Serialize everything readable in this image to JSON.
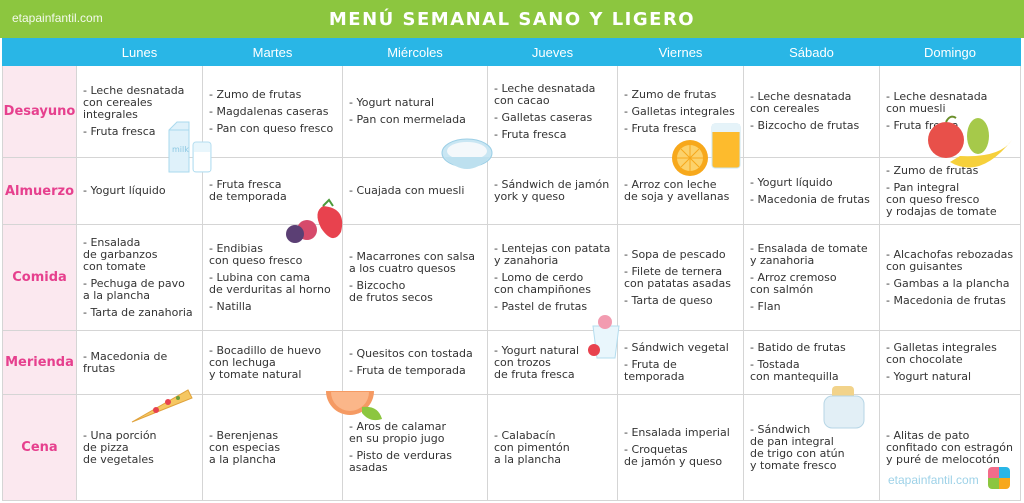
{
  "brand": "etapainfantil.com",
  "title": "MENÚ SEMANAL SANO Y LIGERO",
  "days": [
    "Lunes",
    "Martes",
    "Miércoles",
    "Jueves",
    "Viernes",
    "Sábado",
    "Domingo"
  ],
  "meals": [
    {
      "label": "Desayuno",
      "cells": [
        [
          "- Leche desnatada\n  con cereales\n  integrales",
          "- Fruta fresca"
        ],
        [
          "- Zumo de frutas",
          "- Magdalenas caseras",
          "- Pan con queso fresco"
        ],
        [
          "- Yogurt natural",
          "- Pan con mermelada"
        ],
        [
          "- Leche desnatada\n  con cacao",
          "- Galletas caseras",
          "- Fruta fresca"
        ],
        [
          "- Zumo de frutas",
          "- Galletas integrales",
          "- Fruta fresca"
        ],
        [
          "- Leche desnatada\n  con cereales",
          "- Bizcocho de frutas"
        ],
        [
          "- Leche desnatada\n  con muesli",
          "- Fruta fresca"
        ]
      ]
    },
    {
      "label": "Almuerzo",
      "cells": [
        [
          "- Yogurt líquido"
        ],
        [
          "- Fruta fresca\n  de temporada"
        ],
        [
          "- Cuajada con muesli"
        ],
        [
          "- Sándwich de jamón\n  york y queso"
        ],
        [
          "- Arroz con leche\n  de soja y avellanas"
        ],
        [
          "- Yogurt líquido",
          "- Macedonia de frutas"
        ],
        [
          "- Zumo de frutas",
          "- Pan integral\n  con queso fresco\n  y rodajas de tomate"
        ]
      ]
    },
    {
      "label": "Comida",
      "cells": [
        [
          "- Ensalada\n  de garbanzos\n  con tomate",
          "- Pechuga de pavo\n  a la plancha",
          "- Tarta de zanahoria"
        ],
        [
          "- Endibias\n  con queso fresco",
          "- Lubina con cama\n  de verduritas al horno",
          "- Natilla"
        ],
        [
          "- Macarrones con salsa\n  a los cuatro quesos",
          "- Bizcocho\n  de frutos secos"
        ],
        [
          "- Lentejas con patata\n  y zanahoria",
          "- Lomo de cerdo\n  con champiñones",
          "- Pastel de frutas"
        ],
        [
          "- Sopa de pescado",
          "- Filete de ternera\n  con patatas asadas",
          "- Tarta de queso"
        ],
        [
          "- Ensalada de tomate\n  y zanahoria",
          "- Arroz cremoso\n  con salmón",
          "- Flan"
        ],
        [
          "- Alcachofas rebozadas\n  con guisantes",
          "- Gambas a la plancha",
          "- Macedonia de frutas"
        ]
      ]
    },
    {
      "label": "Merienda",
      "cells": [
        [
          "- Macedonia de frutas"
        ],
        [
          "- Bocadillo de huevo\n  con lechuga\n  y tomate natural"
        ],
        [
          "- Quesitos con tostada",
          "- Fruta de temporada"
        ],
        [
          "- Yogurt natural\n  con trozos\n  de fruta fresca"
        ],
        [
          "- Sándwich vegetal",
          "- Fruta de temporada"
        ],
        [
          "- Batido de frutas",
          "- Tostada\n  con mantequilla"
        ],
        [
          "- Galletas integrales\n  con chocolate",
          "- Yogurt natural"
        ]
      ]
    },
    {
      "label": "Cena",
      "cells": [
        [
          "- Una porción\n  de pizza\n  de vegetales"
        ],
        [
          "- Berenjenas\n  con especias\n  a la plancha"
        ],
        [
          "- Aros de calamar\n  en su propio jugo",
          "- Pisto de verduras\n  asadas"
        ],
        [
          "- Calabacín\n  con pimentón\n  a la plancha"
        ],
        [
          "- Ensalada imperial",
          "- Croquetas\n  de jamón y queso"
        ],
        [
          "- Sándwich\n  de pan integral\n  de trigo con atún\n  y tomate fresco"
        ],
        [
          "- Alitas de pato\n  confitado con estragón\n  y puré de melocotón"
        ]
      ]
    }
  ],
  "icons": [
    "milk-icon",
    "bowl-icon",
    "orange-juice-icon",
    "fruits-icon",
    "berries-icon",
    "yogurt-icon",
    "grapefruit-icon",
    "pizza-icon",
    "toaster-icon"
  ],
  "colors": {
    "title_bg": "#8cc63f",
    "header_bg": "#29b6e6",
    "meal_label": "#e6408e",
    "meal_bg": "#fbe8ef"
  }
}
